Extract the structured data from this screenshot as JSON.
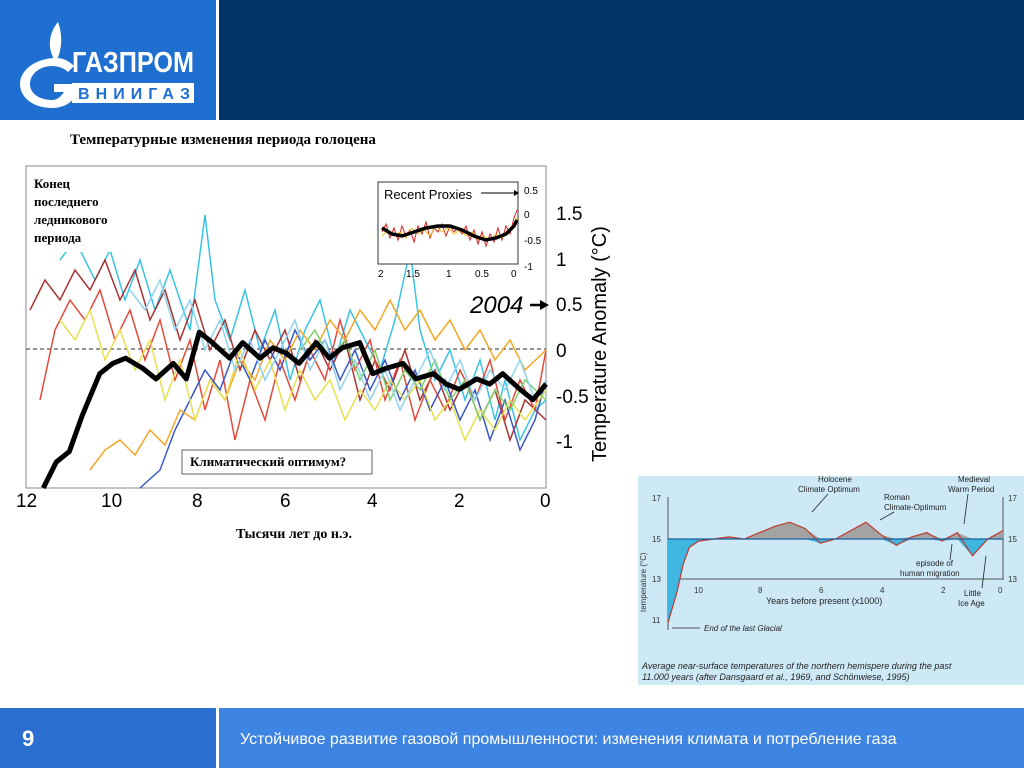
{
  "header": {
    "logo_title": "ГАЗПРОМ",
    "logo_subtitle": "ВНИИГАЗ",
    "brand_color": "#1f6fd1",
    "bar_color": "#003366"
  },
  "footer": {
    "page_number": "9",
    "text": "Устойчивое развитие газовой  промышленности: изменения климата и потребление газа"
  },
  "main_chart": {
    "title": "Температурные изменения периода голоцена",
    "ylabel": "Temperature Anomaly (°C)",
    "xlabel": "Тысячи лет до н.э.",
    "xticks": [
      "12",
      "10",
      "8",
      "6",
      "4",
      "2",
      "0"
    ],
    "yticks": [
      "1.5",
      "1",
      "0.5",
      "0",
      "-0.5",
      "-1"
    ],
    "annotation_glacial": [
      "Конец",
      "последнего",
      "ледникового",
      "периода"
    ],
    "annotation_optimum": "Климатический оптимум?",
    "annotation_2004": "2004",
    "inset": {
      "title": "Recent Proxies",
      "xticks": [
        "2",
        "1.5",
        "1",
        "0.5",
        "0"
      ],
      "yticks": [
        "0.5",
        "0",
        "-0.5",
        "-1"
      ]
    }
  },
  "side_chart": {
    "ylabel": "temperature (°C)",
    "xlabel": "Years before present (x1000)",
    "yticks": [
      "17",
      "15",
      "13",
      "11"
    ],
    "yticks_right": [
      "17",
      "15",
      "13"
    ],
    "xticks": [
      "10",
      "8",
      "6",
      "4",
      "2",
      "0"
    ],
    "annotations": {
      "holocene": [
        "Holocene",
        "Climate Optimum"
      ],
      "roman": [
        "Roman",
        "Climate-Optimum"
      ],
      "medieval": [
        "Medieval",
        "Warm Period"
      ],
      "migration": [
        "episode of",
        "human migration"
      ],
      "little_ice": [
        "Little",
        "Ice Age"
      ],
      "glacial": "End of the last Glacial"
    },
    "caption": [
      "Average near-surface temperatures of the northern hemispere during the past",
      "11.000 years (after Dansgaard et al., 1969, and Schönwiese, 1995)"
    ],
    "bg_color": "#cde9f5"
  },
  "chart_data": [
    {
      "type": "line",
      "title": "Температурные изменения периода голоцена",
      "xlabel": "Тысячи лет до н.э.",
      "ylabel": "Temperature Anomaly (°C)",
      "xlim": [
        12,
        0
      ],
      "ylim": [
        -1.3,
        1.8
      ],
      "x_unit": "thousand years before present",
      "series": [
        {
          "name": "",
          "color": "#000000",
          "x": [
            11.6,
            11.3,
            11.0,
            10.7,
            10.3,
            10.0,
            9.7,
            9.3,
            9.0,
            8.6,
            8.3,
            8.0,
            7.7,
            7.3,
            7.0,
            6.6,
            6.3,
            6.0,
            5.7,
            5.3,
            5.0,
            4.7,
            4.3,
            4.0,
            3.7,
            3.3,
            3.0,
            2.6,
            2.3,
            2.0,
            1.6,
            1.3,
            1.0,
            0.6,
            0.3,
            0.0
          ],
          "y": [
            -1.3,
            -1.05,
            -0.95,
            -0.6,
            -0.2,
            -0.1,
            -0.05,
            -0.15,
            -0.25,
            -0.1,
            -0.25,
            0.2,
            0.1,
            -0.05,
            0.1,
            -0.05,
            0.05,
            0.0,
            -0.1,
            0.1,
            -0.05,
            0.05,
            0.1,
            -0.2,
            -0.15,
            -0.1,
            -0.25,
            -0.2,
            -0.3,
            -0.35,
            -0.25,
            -0.3,
            -0.2,
            -0.35,
            -0.45,
            -0.3
          ]
        }
      ]
    },
    {
      "type": "area",
      "xlabel": "Years before present (x1000)",
      "ylabel": "temperature (°C)",
      "xlim": [
        11,
        0
      ],
      "ylim": [
        10.5,
        17.5
      ],
      "series": [
        {
          "name": "",
          "x": [
            11,
            10.7,
            10.5,
            10.3,
            10.0,
            9.5,
            9.0,
            8.5,
            8.0,
            7.5,
            7.0,
            6.5,
            6.0,
            5.5,
            5.0,
            4.5,
            4.0,
            3.5,
            3.0,
            2.5,
            2.0,
            1.5,
            1.0,
            0.5,
            0.0
          ],
          "y": [
            11.0,
            12.5,
            13.8,
            14.6,
            14.9,
            15.0,
            15.1,
            15.0,
            15.3,
            15.6,
            15.8,
            15.5,
            14.8,
            15.0,
            15.4,
            15.8,
            15.2,
            14.7,
            15.1,
            15.3,
            14.9,
            15.3,
            14.2,
            15.0,
            15.4
          ]
        }
      ]
    }
  ]
}
